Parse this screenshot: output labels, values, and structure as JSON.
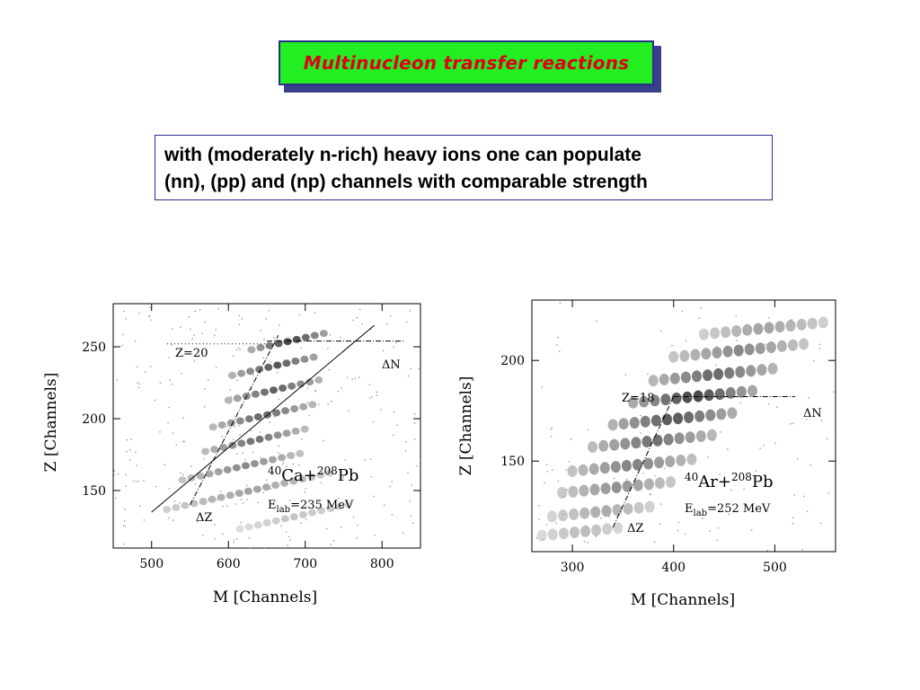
{
  "slide": {
    "title": "Multinucleon transfer reactions",
    "description_lines": [
      "with (moderately n-rich) heavy ions one can populate",
      "(nn), (pp) and (np) channels with comparable strength"
    ]
  },
  "colors": {
    "title_bg": "#22ee22",
    "title_text": "#e0001a",
    "title_border": "#2a2f88"
  },
  "chart_data": [
    {
      "type": "scatter",
      "title": "",
      "xlabel": "M [Channels]",
      "ylabel": "Z [Channels]",
      "xlim": [
        450,
        850
      ],
      "ylim": [
        110,
        280
      ],
      "xticks": [
        500,
        600,
        700,
        800
      ],
      "yticks": [
        150,
        200,
        250
      ],
      "reaction": {
        "a1": "40",
        "e1": "Ca+",
        "a2": "208",
        "e2": "Pb"
      },
      "energy": {
        "sub": "lab",
        "text": "=235 MeV"
      },
      "annotations": {
        "z_label": "Z=20",
        "dn_label": "ΔN",
        "dz_label": "ΔZ"
      },
      "ridges": [
        {
          "x": [
            615,
            760
          ],
          "z": 132,
          "strength": 0.25
        },
        {
          "x": [
            520,
            740
          ],
          "z": 150,
          "strength": 0.45
        },
        {
          "x": [
            540,
            700
          ],
          "z": 167,
          "strength": 0.6
        },
        {
          "x": [
            570,
            700
          ],
          "z": 185,
          "strength": 0.75
        },
        {
          "x": [
            580,
            710
          ],
          "z": 202,
          "strength": 0.8
        },
        {
          "x": [
            600,
            720
          ],
          "z": 220,
          "strength": 0.85
        },
        {
          "x": [
            605,
            720
          ],
          "z": 237,
          "strength": 0.9
        },
        {
          "x": [
            630,
            730
          ],
          "z": 254,
          "strength": 1.0
        }
      ],
      "diagonal_line": {
        "x": [
          500,
          790
        ],
        "z": [
          135,
          265
        ]
      },
      "dz_line": {
        "x": [
          550,
          665
        ],
        "z": [
          140,
          258
        ]
      },
      "dn_line": {
        "x": [
          650,
          830
        ],
        "z": 254
      },
      "z20_dotted": {
        "x": [
          520,
          650
        ],
        "z": 252
      }
    },
    {
      "type": "scatter",
      "title": "",
      "xlabel": "M [Channels]",
      "ylabel": "Z [Channels]",
      "xlim": [
        260,
        560
      ],
      "ylim": [
        105,
        230
      ],
      "xticks": [
        300,
        400,
        500
      ],
      "yticks": [
        150,
        200
      ],
      "reaction": {
        "a1": "40",
        "e1": "Ar+",
        "a2": "208",
        "e2": "Pb"
      },
      "energy": {
        "sub": "lab",
        "text": "=252 MeV"
      },
      "annotations": {
        "z_label": "Z=18",
        "dn_label": "ΔN",
        "dz_label": "ΔZ"
      },
      "ridges": [
        {
          "x": [
            270,
            350
          ],
          "z": 115,
          "strength": 0.3
        },
        {
          "x": [
            280,
            380
          ],
          "z": 125,
          "strength": 0.4
        },
        {
          "x": [
            290,
            400
          ],
          "z": 137,
          "strength": 0.55
        },
        {
          "x": [
            300,
            420
          ],
          "z": 148,
          "strength": 0.65
        },
        {
          "x": [
            320,
            440
          ],
          "z": 160,
          "strength": 0.75
        },
        {
          "x": [
            340,
            460
          ],
          "z": 171,
          "strength": 0.9
        },
        {
          "x": [
            360,
            480
          ],
          "z": 182,
          "strength": 1.0
        },
        {
          "x": [
            380,
            500
          ],
          "z": 193,
          "strength": 0.8
        },
        {
          "x": [
            400,
            530
          ],
          "z": 205,
          "strength": 0.6
        },
        {
          "x": [
            430,
            550
          ],
          "z": 216,
          "strength": 0.45
        }
      ],
      "dz_line": {
        "x": [
          340,
          400
        ],
        "z": [
          117,
          182
        ]
      },
      "dn_line": {
        "x": [
          400,
          520
        ],
        "z": 182
      }
    }
  ]
}
